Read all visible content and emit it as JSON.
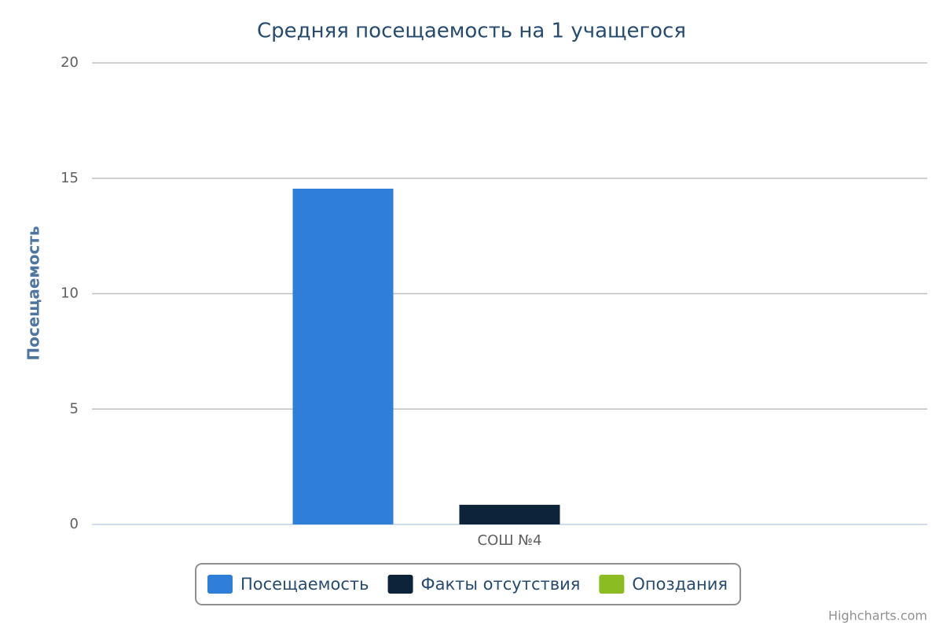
{
  "chart_data": {
    "type": "bar",
    "title": "Средняя посещаемость на 1 учащегося",
    "y_label": "Посещаемость",
    "categories": [
      "СОШ №4"
    ],
    "series": [
      {
        "name": "Посещаемость",
        "color": "#2f7ed8",
        "values": [
          14.55
        ]
      },
      {
        "name": "Факты отсутствия",
        "color": "#0d233a",
        "values": [
          0.85
        ]
      },
      {
        "name": "Опоздания",
        "color": "#8bbc21",
        "values": [
          0
        ]
      }
    ],
    "ylim": [
      0,
      20
    ],
    "yticks": [
      0,
      5,
      10,
      15,
      20
    ],
    "grid": true,
    "credits": "Highcharts.com"
  }
}
